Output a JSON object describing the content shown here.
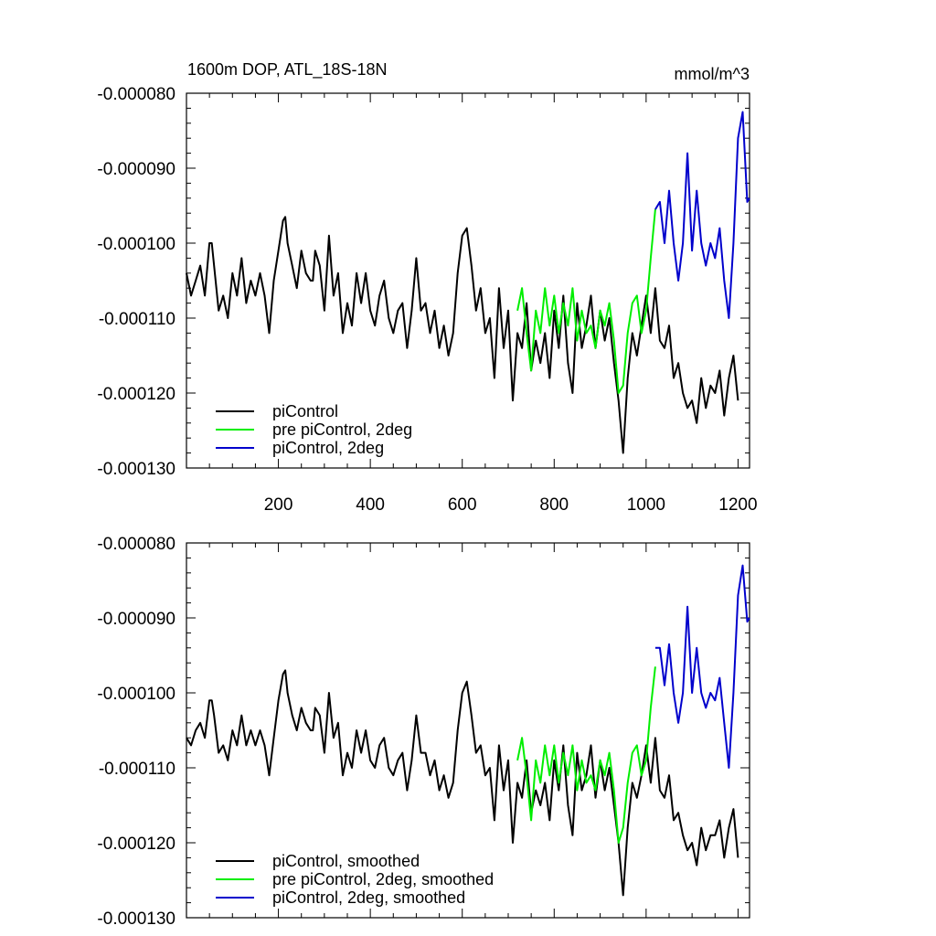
{
  "figure": {
    "title_left": "1600m DOP, ATL_18S-18N",
    "title_right": "mmol/m^3"
  },
  "chart_data": [
    {
      "type": "line",
      "title": "1600m DOP, ATL_18S-18N",
      "units": "mmol/m^3",
      "xlim": [
        0,
        1225
      ],
      "ylim": [
        -0.00013,
        -8e-05
      ],
      "xticks": [
        200,
        400,
        600,
        800,
        1000,
        1200
      ],
      "xtick_labels": [
        "200",
        "400",
        "600",
        "800",
        "1000",
        "1200"
      ],
      "yticks": [
        -8e-05,
        -9e-05,
        -0.0001,
        -0.00011,
        -0.00012,
        -0.00013
      ],
      "ytick_labels": [
        "-0.000080",
        "-0.000090",
        "-0.000100",
        "-0.000110",
        "-0.000120",
        "-0.000130"
      ],
      "legend": [
        "piControl",
        "pre piControl, 2deg",
        "piControl, 2deg"
      ],
      "legend_position": "bottom-left",
      "series": [
        {
          "name": "piControl",
          "color": "#000000",
          "x": [
            0,
            10,
            20,
            30,
            40,
            50,
            55,
            60,
            70,
            80,
            90,
            100,
            110,
            120,
            130,
            140,
            150,
            160,
            170,
            180,
            190,
            200,
            210,
            215,
            220,
            230,
            240,
            250,
            260,
            270,
            275,
            280,
            290,
            300,
            310,
            320,
            330,
            340,
            350,
            360,
            370,
            380,
            390,
            400,
            410,
            420,
            430,
            440,
            450,
            460,
            470,
            480,
            490,
            500,
            510,
            520,
            530,
            540,
            550,
            560,
            570,
            580,
            590,
            600,
            610,
            620,
            630,
            640,
            650,
            660,
            670,
            680,
            690,
            700,
            710,
            720,
            730,
            740,
            750,
            760,
            770,
            780,
            790,
            800,
            810,
            820,
            830,
            840,
            850,
            860,
            870,
            880,
            890,
            900,
            910,
            920,
            930,
            940,
            950,
            960,
            970,
            980,
            990,
            1000,
            1010,
            1020,
            1030,
            1040,
            1050,
            1060,
            1070,
            1080,
            1090,
            1100,
            1110,
            1120,
            1130,
            1140,
            1150,
            1160,
            1170,
            1180,
            1190,
            1200
          ],
          "values": [
            -0.000104,
            -0.000107,
            -0.000105,
            -0.000103,
            -0.000107,
            -0.0001,
            -0.0001,
            -0.000103,
            -0.000109,
            -0.000107,
            -0.00011,
            -0.000104,
            -0.000107,
            -0.000102,
            -0.000108,
            -0.000105,
            -0.000107,
            -0.000104,
            -0.000107,
            -0.000112,
            -0.000105,
            -0.000101,
            -9.7e-05,
            -9.65e-05,
            -0.0001,
            -0.000103,
            -0.000106,
            -0.000101,
            -0.000104,
            -0.000105,
            -0.000105,
            -0.000101,
            -0.000103,
            -0.000109,
            -9.9e-05,
            -0.000107,
            -0.000104,
            -0.000112,
            -0.000108,
            -0.000111,
            -0.000104,
            -0.000108,
            -0.000104,
            -0.000109,
            -0.000111,
            -0.000107,
            -0.000105,
            -0.00011,
            -0.000112,
            -0.000109,
            -0.000108,
            -0.000114,
            -0.000109,
            -0.000102,
            -0.000109,
            -0.000108,
            -0.000112,
            -0.000109,
            -0.000114,
            -0.000111,
            -0.000115,
            -0.000112,
            -0.000104,
            -9.9e-05,
            -9.8e-05,
            -0.000103,
            -0.000109,
            -0.000106,
            -0.000112,
            -0.00011,
            -0.000118,
            -0.000106,
            -0.000114,
            -0.000109,
            -0.000121,
            -0.000112,
            -0.000114,
            -0.000108,
            -0.000117,
            -0.000113,
            -0.000116,
            -0.000112,
            -0.000118,
            -0.000109,
            -0.000114,
            -0.000107,
            -0.000116,
            -0.00012,
            -0.000108,
            -0.000114,
            -0.000111,
            -0.000107,
            -0.000114,
            -0.000109,
            -0.000113,
            -0.00011,
            -0.000116,
            -0.000121,
            -0.000128,
            -0.000118,
            -0.000112,
            -0.000115,
            -0.000111,
            -0.000107,
            -0.000112,
            -0.000106,
            -0.000113,
            -0.000114,
            -0.000111,
            -0.000118,
            -0.000116,
            -0.00012,
            -0.000122,
            -0.000121,
            -0.000124,
            -0.000118,
            -0.000122,
            -0.000119,
            -0.00012,
            -0.000117,
            -0.000123,
            -0.000118,
            -0.000115,
            -0.000121
          ]
        },
        {
          "name": "pre piControl, 2deg",
          "color": "#00ee00",
          "x": [
            720,
            730,
            740,
            750,
            760,
            770,
            780,
            790,
            800,
            810,
            820,
            830,
            840,
            850,
            860,
            870,
            880,
            890,
            900,
            910,
            920,
            930,
            940,
            950,
            960,
            970,
            980,
            990,
            1000,
            1010,
            1020
          ],
          "values": [
            -0.000109,
            -0.000106,
            -0.000112,
            -0.000117,
            -0.000109,
            -0.000112,
            -0.000106,
            -0.000111,
            -0.000107,
            -0.000112,
            -0.000108,
            -0.000111,
            -0.000106,
            -0.000113,
            -0.000109,
            -0.000112,
            -0.000111,
            -0.000114,
            -0.000109,
            -0.000111,
            -0.000108,
            -0.000113,
            -0.00012,
            -0.000119,
            -0.000112,
            -0.000108,
            -0.000107,
            -0.000112,
            -0.000109,
            -0.000102,
            -9.55e-05
          ]
        },
        {
          "name": "piControl, 2deg",
          "color": "#0000cc",
          "x": [
            1020,
            1030,
            1040,
            1050,
            1060,
            1070,
            1080,
            1090,
            1100,
            1110,
            1120,
            1130,
            1140,
            1150,
            1160,
            1170,
            1180,
            1190,
            1200,
            1210,
            1220,
            1225
          ],
          "values": [
            -9.55e-05,
            -9.45e-05,
            -0.0001,
            -9.3e-05,
            -0.0001,
            -0.000105,
            -0.0001,
            -8.8e-05,
            -0.000101,
            -9.3e-05,
            -0.0001,
            -0.000103,
            -0.0001,
            -0.000102,
            -9.8e-05,
            -0.000105,
            -0.00011,
            -0.0001,
            -8.6e-05,
            -8.25e-05,
            -9.45e-05,
            -9.4e-05
          ]
        }
      ]
    },
    {
      "type": "line",
      "xlim": [
        0,
        1225
      ],
      "ylim": [
        -0.00013,
        -8e-05
      ],
      "yticks": [
        -8e-05,
        -9e-05,
        -0.0001,
        -0.00011,
        -0.00012,
        -0.00013
      ],
      "ytick_labels": [
        "-0.000080",
        "-0.000090",
        "-0.000100",
        "-0.000110",
        "-0.000120",
        "-0.000130"
      ],
      "legend": [
        "piControl, smoothed",
        "pre piControl, 2deg, smoothed",
        "piControl, 2deg, smoothed"
      ],
      "legend_position": "bottom-left",
      "series": [
        {
          "name": "piControl, smoothed",
          "color": "#000000",
          "x": [
            0,
            10,
            20,
            30,
            40,
            50,
            55,
            60,
            70,
            80,
            90,
            100,
            110,
            120,
            130,
            140,
            150,
            160,
            170,
            180,
            190,
            200,
            210,
            215,
            220,
            230,
            240,
            250,
            260,
            270,
            275,
            280,
            290,
            300,
            310,
            320,
            330,
            340,
            350,
            360,
            370,
            380,
            390,
            400,
            410,
            420,
            430,
            440,
            450,
            460,
            470,
            480,
            490,
            500,
            510,
            520,
            530,
            540,
            550,
            560,
            570,
            580,
            590,
            600,
            610,
            620,
            630,
            640,
            650,
            660,
            670,
            680,
            690,
            700,
            710,
            720,
            730,
            740,
            750,
            760,
            770,
            780,
            790,
            800,
            810,
            820,
            830,
            840,
            850,
            860,
            870,
            880,
            890,
            900,
            910,
            920,
            930,
            940,
            950,
            960,
            970,
            980,
            990,
            1000,
            1010,
            1020,
            1030,
            1040,
            1050,
            1060,
            1070,
            1080,
            1090,
            1100,
            1110,
            1120,
            1130,
            1140,
            1150,
            1160,
            1170,
            1180,
            1190,
            1200
          ],
          "values": [
            -0.000106,
            -0.000107,
            -0.000105,
            -0.000104,
            -0.000106,
            -0.000101,
            -0.000101,
            -0.000103,
            -0.000108,
            -0.000107,
            -0.000109,
            -0.000105,
            -0.000107,
            -0.000103,
            -0.000107,
            -0.000105,
            -0.000107,
            -0.000105,
            -0.000107,
            -0.000111,
            -0.000106,
            -0.000101,
            -9.75e-05,
            -9.7e-05,
            -0.0001,
            -0.000103,
            -0.000105,
            -0.000102,
            -0.000104,
            -0.000105,
            -0.000105,
            -0.000102,
            -0.000103,
            -0.000108,
            -0.0001,
            -0.000106,
            -0.000104,
            -0.000111,
            -0.000108,
            -0.00011,
            -0.000105,
            -0.000108,
            -0.000105,
            -0.000109,
            -0.00011,
            -0.000107,
            -0.000106,
            -0.00011,
            -0.000111,
            -0.000109,
            -0.000108,
            -0.000113,
            -0.000109,
            -0.000103,
            -0.000108,
            -0.000108,
            -0.000111,
            -0.000109,
            -0.000113,
            -0.000111,
            -0.000114,
            -0.000112,
            -0.000105,
            -0.0001,
            -9.85e-05,
            -0.000103,
            -0.000108,
            -0.000107,
            -0.000111,
            -0.00011,
            -0.000117,
            -0.000107,
            -0.000113,
            -0.000109,
            -0.00012,
            -0.000112,
            -0.000114,
            -0.000109,
            -0.000116,
            -0.000113,
            -0.000115,
            -0.000112,
            -0.000117,
            -0.000109,
            -0.000113,
            -0.000107,
            -0.000115,
            -0.000119,
            -0.000108,
            -0.000113,
            -0.000111,
            -0.000107,
            -0.000114,
            -0.000109,
            -0.000113,
            -0.00011,
            -0.000115,
            -0.00012,
            -0.000127,
            -0.000118,
            -0.000112,
            -0.000114,
            -0.000111,
            -0.000107,
            -0.000112,
            -0.000106,
            -0.000113,
            -0.000114,
            -0.000111,
            -0.000117,
            -0.000116,
            -0.000119,
            -0.000121,
            -0.00012,
            -0.000123,
            -0.000118,
            -0.000121,
            -0.000119,
            -0.000119,
            -0.000117,
            -0.000122,
            -0.000118,
            -0.0001155,
            -0.000122
          ]
        },
        {
          "name": "pre piControl, 2deg, smoothed",
          "color": "#00ee00",
          "x": [
            720,
            730,
            740,
            750,
            760,
            770,
            780,
            790,
            800,
            810,
            820,
            830,
            840,
            850,
            860,
            870,
            880,
            890,
            900,
            910,
            920,
            930,
            940,
            950,
            960,
            970,
            980,
            990,
            1000,
            1010,
            1020
          ],
          "values": [
            -0.000109,
            -0.000106,
            -0.000111,
            -0.000117,
            -0.000109,
            -0.000112,
            -0.000107,
            -0.000111,
            -0.000107,
            -0.000112,
            -0.000108,
            -0.000111,
            -0.000107,
            -0.000113,
            -0.000109,
            -0.000112,
            -0.000111,
            -0.000113,
            -0.000109,
            -0.000111,
            -0.000108,
            -0.000113,
            -0.00012,
            -0.000118,
            -0.000112,
            -0.000108,
            -0.000107,
            -0.000111,
            -0.000109,
            -0.000102,
            -9.65e-05
          ]
        },
        {
          "name": "piControl, 2deg, smoothed",
          "color": "#0000cc",
          "x": [
            1020,
            1030,
            1040,
            1050,
            1060,
            1070,
            1080,
            1090,
            1100,
            1110,
            1120,
            1130,
            1140,
            1150,
            1160,
            1170,
            1180,
            1190,
            1200,
            1210,
            1220,
            1225
          ],
          "values": [
            -9.4e-05,
            -9.4e-05,
            -9.9e-05,
            -9.35e-05,
            -0.0001,
            -0.000104,
            -0.0001,
            -8.85e-05,
            -0.0001,
            -9.4e-05,
            -0.0001,
            -0.000102,
            -0.0001,
            -0.000101,
            -9.8e-05,
            -0.000104,
            -0.00011,
            -0.0001,
            -8.7e-05,
            -8.3e-05,
            -9.05e-05,
            -9e-05
          ]
        }
      ]
    }
  ]
}
